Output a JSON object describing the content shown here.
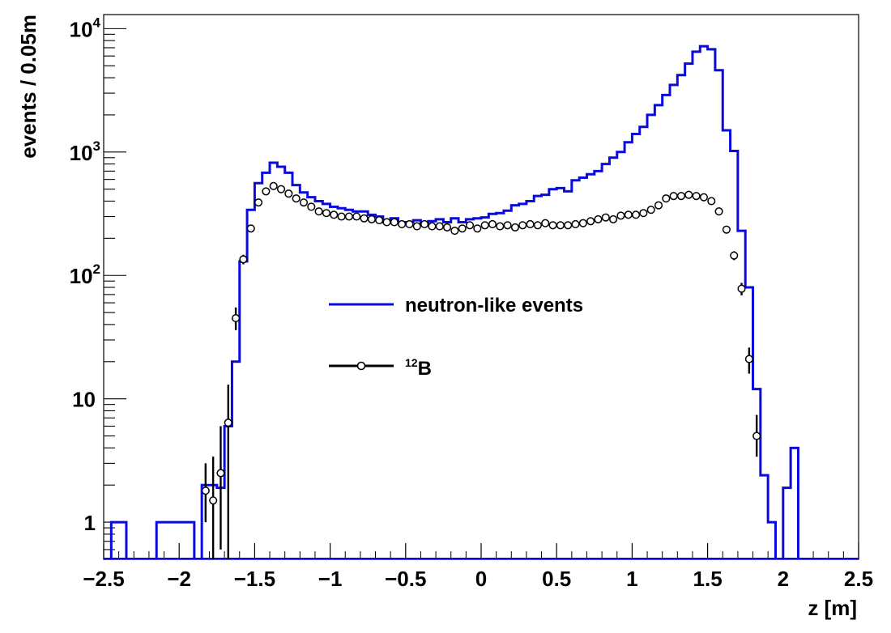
{
  "chart_data": {
    "type": "histogram",
    "title": "",
    "xlabel": "z [m]",
    "ylabel": "events / 0.05m",
    "xlim": [
      -2.5,
      2.5
    ],
    "ylim": [
      0.5,
      13000
    ],
    "yscale": "log",
    "bin_width": 0.05,
    "grid": false,
    "legend_placement": "center",
    "x_ticks": [
      {
        "v": -2.5,
        "label": "−2.5"
      },
      {
        "v": -2,
        "label": "−2"
      },
      {
        "v": -1.5,
        "label": "−1.5"
      },
      {
        "v": -1,
        "label": "−1"
      },
      {
        "v": -0.5,
        "label": "−0.5"
      },
      {
        "v": 0,
        "label": "0"
      },
      {
        "v": 0.5,
        "label": "0.5"
      },
      {
        "v": 1,
        "label": "1"
      },
      {
        "v": 1.5,
        "label": "1.5"
      },
      {
        "v": 2,
        "label": "2"
      },
      {
        "v": 2.5,
        "label": "2.5"
      }
    ],
    "y_ticks": [
      {
        "v": 1,
        "base": "1",
        "exp": ""
      },
      {
        "v": 10,
        "base": "10",
        "exp": ""
      },
      {
        "v": 100,
        "base": "10",
        "exp": "2"
      },
      {
        "v": 1000,
        "base": "10",
        "exp": "3"
      },
      {
        "v": 10000,
        "base": "10",
        "exp": "4"
      }
    ],
    "neutron": {
      "name": "neutron-like events",
      "color": "#0a0adc",
      "bins": [
        [
          -2.45,
          1
        ],
        [
          -2.4,
          1
        ],
        [
          -2.15,
          1
        ],
        [
          -2.1,
          1
        ],
        [
          -2.05,
          1
        ],
        [
          -2.0,
          1
        ],
        [
          -1.95,
          1
        ],
        [
          -1.85,
          2
        ],
        [
          -1.8,
          2
        ],
        [
          -1.75,
          1.9
        ],
        [
          -1.7,
          6
        ],
        [
          -1.65,
          20
        ],
        [
          -1.6,
          130
        ],
        [
          -1.55,
          340
        ],
        [
          -1.5,
          560
        ],
        [
          -1.45,
          680
        ],
        [
          -1.4,
          820
        ],
        [
          -1.35,
          760
        ],
        [
          -1.3,
          680
        ],
        [
          -1.25,
          540
        ],
        [
          -1.2,
          470
        ],
        [
          -1.15,
          430
        ],
        [
          -1.1,
          400
        ],
        [
          -1.05,
          380
        ],
        [
          -1.0,
          360
        ],
        [
          -0.95,
          350
        ],
        [
          -0.9,
          340
        ],
        [
          -0.85,
          330
        ],
        [
          -0.8,
          330
        ],
        [
          -0.75,
          310
        ],
        [
          -0.7,
          300
        ],
        [
          -0.65,
          270
        ],
        [
          -0.6,
          290
        ],
        [
          -0.55,
          270
        ],
        [
          -0.5,
          270
        ],
        [
          -0.45,
          280
        ],
        [
          -0.4,
          265
        ],
        [
          -0.35,
          275
        ],
        [
          -0.3,
          285
        ],
        [
          -0.25,
          270
        ],
        [
          -0.2,
          290
        ],
        [
          -0.15,
          270
        ],
        [
          -0.1,
          285
        ],
        [
          -0.05,
          290
        ],
        [
          0.0,
          295
        ],
        [
          0.05,
          315
        ],
        [
          0.1,
          320
        ],
        [
          0.15,
          335
        ],
        [
          0.2,
          370
        ],
        [
          0.25,
          380
        ],
        [
          0.3,
          400
        ],
        [
          0.35,
          440
        ],
        [
          0.4,
          450
        ],
        [
          0.45,
          500
        ],
        [
          0.5,
          510
        ],
        [
          0.55,
          480
        ],
        [
          0.6,
          590
        ],
        [
          0.65,
          620
        ],
        [
          0.7,
          660
        ],
        [
          0.75,
          700
        ],
        [
          0.8,
          800
        ],
        [
          0.85,
          900
        ],
        [
          0.9,
          1000
        ],
        [
          0.95,
          1200
        ],
        [
          1.0,
          1400
        ],
        [
          1.05,
          1600
        ],
        [
          1.1,
          2000
        ],
        [
          1.15,
          2400
        ],
        [
          1.2,
          2900
        ],
        [
          1.25,
          3500
        ],
        [
          1.3,
          4200
        ],
        [
          1.35,
          5200
        ],
        [
          1.4,
          6500
        ],
        [
          1.45,
          7200
        ],
        [
          1.5,
          6800
        ],
        [
          1.55,
          4600
        ],
        [
          1.6,
          1500
        ],
        [
          1.65,
          1020
        ],
        [
          1.7,
          230
        ],
        [
          1.75,
          80
        ],
        [
          1.8,
          12
        ],
        [
          1.85,
          2.4
        ],
        [
          1.9,
          1
        ],
        [
          1.95,
          0
        ],
        [
          2.0,
          1.9
        ],
        [
          2.05,
          4
        ]
      ]
    },
    "b12": {
      "name": "12B",
      "label_sup": "12",
      "label_main": "B",
      "color": "#000000",
      "points": [
        [
          -1.825,
          1.8,
          3.0,
          1.0
        ],
        [
          -1.775,
          1.5,
          3.4,
          0.5
        ],
        [
          -1.725,
          2.5,
          6.0,
          0.6
        ],
        [
          -1.675,
          6.4,
          13.0,
          0.5
        ],
        [
          -1.625,
          45,
          55,
          36
        ],
        [
          -1.575,
          135,
          147,
          123
        ],
        [
          -1.525,
          240,
          256,
          224
        ],
        [
          -1.475,
          390,
          410,
          370
        ],
        [
          -1.425,
          480,
          502,
          458
        ],
        [
          -1.375,
          530,
          553,
          507
        ],
        [
          -1.325,
          500,
          522,
          478
        ],
        [
          -1.275,
          460,
          481,
          439
        ],
        [
          -1.225,
          420,
          440,
          400
        ],
        [
          -1.175,
          390,
          410,
          370
        ],
        [
          -1.125,
          360,
          379,
          341
        ],
        [
          -1.075,
          330,
          348,
          312
        ],
        [
          -1.025,
          320,
          338,
          302
        ],
        [
          -0.975,
          310,
          328,
          292
        ],
        [
          -0.925,
          300,
          317,
          283
        ],
        [
          -0.875,
          300,
          317,
          283
        ],
        [
          -0.825,
          300,
          317,
          283
        ],
        [
          -0.775,
          290,
          307,
          273
        ],
        [
          -0.725,
          285,
          302,
          268
        ],
        [
          -0.675,
          280,
          297,
          263
        ],
        [
          -0.625,
          270,
          286,
          254
        ],
        [
          -0.575,
          270,
          286,
          254
        ],
        [
          -0.525,
          260,
          276,
          244
        ],
        [
          -0.475,
          260,
          276,
          244
        ],
        [
          -0.425,
          250,
          266,
          234
        ],
        [
          -0.375,
          260,
          276,
          244
        ],
        [
          -0.325,
          250,
          266,
          234
        ],
        [
          -0.275,
          250,
          266,
          234
        ],
        [
          -0.225,
          245,
          261,
          229
        ],
        [
          -0.175,
          230,
          246,
          214
        ],
        [
          -0.125,
          240,
          256,
          224
        ],
        [
          -0.075,
          255,
          271,
          239
        ],
        [
          -0.025,
          240,
          256,
          224
        ],
        [
          0.025,
          255,
          271,
          239
        ],
        [
          0.075,
          260,
          276,
          244
        ],
        [
          0.125,
          250,
          266,
          234
        ],
        [
          0.175,
          255,
          271,
          239
        ],
        [
          0.225,
          245,
          261,
          229
        ],
        [
          0.275,
          255,
          271,
          239
        ],
        [
          0.325,
          260,
          276,
          244
        ],
        [
          0.375,
          255,
          271,
          239
        ],
        [
          0.425,
          265,
          281,
          249
        ],
        [
          0.475,
          255,
          271,
          239
        ],
        [
          0.525,
          255,
          271,
          239
        ],
        [
          0.575,
          255,
          271,
          239
        ],
        [
          0.625,
          260,
          276,
          244
        ],
        [
          0.675,
          265,
          281,
          249
        ],
        [
          0.725,
          275,
          291,
          259
        ],
        [
          0.775,
          285,
          302,
          268
        ],
        [
          0.825,
          295,
          312,
          278
        ],
        [
          0.875,
          285,
          302,
          268
        ],
        [
          0.925,
          305,
          322,
          288
        ],
        [
          0.975,
          310,
          328,
          292
        ],
        [
          1.025,
          310,
          328,
          292
        ],
        [
          1.075,
          320,
          338,
          302
        ],
        [
          1.125,
          340,
          358,
          322
        ],
        [
          1.175,
          370,
          389,
          351
        ],
        [
          1.225,
          420,
          440,
          400
        ],
        [
          1.275,
          440,
          461,
          419
        ],
        [
          1.325,
          440,
          461,
          419
        ],
        [
          1.375,
          450,
          471,
          429
        ],
        [
          1.425,
          440,
          461,
          419
        ],
        [
          1.475,
          430,
          450,
          410
        ],
        [
          1.525,
          400,
          420,
          380
        ],
        [
          1.575,
          330,
          348,
          312
        ],
        [
          1.625,
          235,
          250,
          220
        ],
        [
          1.675,
          145,
          157,
          133
        ],
        [
          1.725,
          78,
          87,
          69
        ],
        [
          1.775,
          21,
          26,
          16
        ],
        [
          1.825,
          5,
          7.4,
          3.4
        ]
      ]
    }
  }
}
